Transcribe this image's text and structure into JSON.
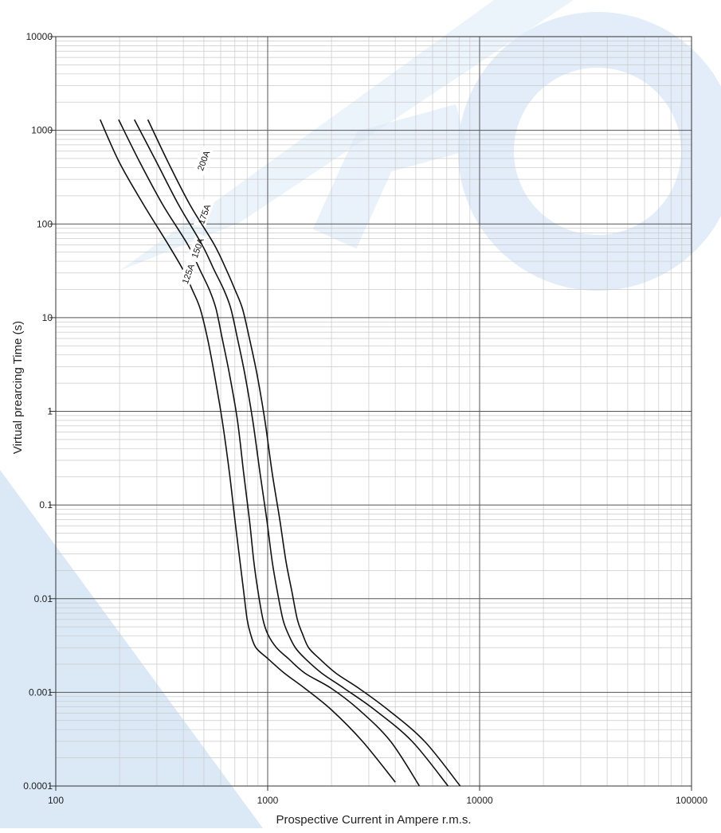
{
  "chart_data": {
    "type": "line",
    "title": "",
    "xlabel": "Prospective Current in Ampere r.m.s.",
    "ylabel": "Virtual prearcing Time (s)",
    "xscale": "log",
    "yscale": "log",
    "xlim": [
      100,
      100000
    ],
    "ylim": [
      0.0001,
      10000
    ],
    "x_ticks": [
      100,
      1000,
      10000,
      100000
    ],
    "x_tick_labels": [
      "100",
      "1000",
      "10000",
      "100000"
    ],
    "y_ticks": [
      0.0001,
      0.001,
      0.01,
      0.1,
      1,
      10,
      100,
      1000,
      10000
    ],
    "y_tick_labels": [
      "0.0001",
      "0.001",
      "0.01",
      "0.1",
      "1",
      "10",
      "100",
      "1000",
      "10000"
    ],
    "grid": true,
    "legend": "none",
    "watermark_colors": [
      "#dbe9f7",
      "#c7dcf0"
    ],
    "series": [
      {
        "name": "125A",
        "x": [
          162,
          200,
          260,
          340,
          400,
          440,
          480,
          520,
          560,
          610,
          660,
          700,
          740,
          770,
          800,
          830,
          880,
          1000,
          1200,
          1500,
          2000,
          2800,
          4000
        ],
        "y": [
          1300,
          450,
          160,
          60,
          32,
          20,
          12.5,
          6,
          2.5,
          0.8,
          0.22,
          0.07,
          0.025,
          0.012,
          0.006,
          0.0042,
          0.003,
          0.0023,
          0.0016,
          0.0011,
          0.00065,
          0.0003,
          0.00011
        ]
      },
      {
        "name": "150A",
        "x": [
          198,
          250,
          320,
          420,
          480,
          530,
          570,
          610,
          660,
          720,
          770,
          820,
          860,
          900,
          950,
          1000,
          1100,
          1250,
          1500,
          2000,
          2700,
          3800,
          5200
        ],
        "y": [
          1300,
          450,
          160,
          60,
          32,
          20,
          12.5,
          6,
          2.5,
          0.8,
          0.22,
          0.07,
          0.025,
          0.012,
          0.006,
          0.0042,
          0.003,
          0.0023,
          0.0016,
          0.0011,
          0.00065,
          0.0003,
          0.0001
        ]
      },
      {
        "name": "175A",
        "x": [
          235,
          300,
          380,
          490,
          560,
          620,
          670,
          720,
          780,
          850,
          920,
          990,
          1050,
          1110,
          1180,
          1250,
          1350,
          1500,
          1800,
          2300,
          3200,
          4800,
          7100
        ],
        "y": [
          1300,
          450,
          160,
          60,
          32,
          20,
          12.5,
          6,
          2.5,
          0.8,
          0.22,
          0.07,
          0.025,
          0.012,
          0.006,
          0.0042,
          0.003,
          0.0023,
          0.0016,
          0.0011,
          0.00065,
          0.0003,
          0.0001
        ]
      },
      {
        "name": "200A",
        "x": [
          272,
          340,
          430,
          560,
          640,
          700,
          760,
          820,
          890,
          970,
          1050,
          1140,
          1220,
          1300,
          1380,
          1460,
          1560,
          1750,
          2100,
          2700,
          3700,
          5500,
          8100
        ],
        "y": [
          1300,
          450,
          160,
          60,
          32,
          20,
          12.5,
          6,
          2.5,
          0.8,
          0.22,
          0.07,
          0.025,
          0.012,
          0.006,
          0.0042,
          0.003,
          0.0023,
          0.0016,
          0.0011,
          0.00065,
          0.0003,
          0.0001
        ]
      }
    ]
  }
}
